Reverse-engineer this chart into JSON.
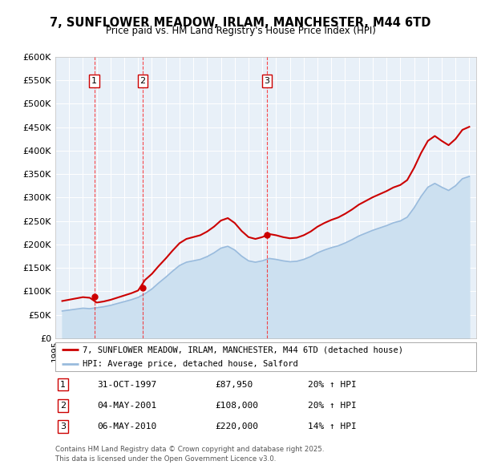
{
  "title": "7, SUNFLOWER MEADOW, IRLAM, MANCHESTER, M44 6TD",
  "subtitle": "Price paid vs. HM Land Registry's House Price Index (HPI)",
  "legend_line1": "7, SUNFLOWER MEADOW, IRLAM, MANCHESTER, M44 6TD (detached house)",
  "legend_line2": "HPI: Average price, detached house, Salford",
  "transactions": [
    {
      "num": 1,
      "date": "31-OCT-1997",
      "price": 87950,
      "hpi_pct": "20% ↑ HPI",
      "year": 1997.83
    },
    {
      "num": 2,
      "date": "04-MAY-2001",
      "price": 108000,
      "hpi_pct": "20% ↑ HPI",
      "year": 2001.34
    },
    {
      "num": 3,
      "date": "06-MAY-2010",
      "price": 220000,
      "hpi_pct": "14% ↑ HPI",
      "year": 2010.34
    }
  ],
  "footer_line1": "Contains HM Land Registry data © Crown copyright and database right 2025.",
  "footer_line2": "This data is licensed under the Open Government Licence v3.0.",
  "price_line_color": "#cc0000",
  "hpi_line_color": "#99bbdd",
  "hpi_fill_color": "#cce0f0",
  "background_color": "#e8f0f8",
  "ylim": [
    0,
    600000
  ],
  "yticks": [
    0,
    50000,
    100000,
    150000,
    200000,
    250000,
    300000,
    350000,
    400000,
    450000,
    500000,
    550000,
    600000
  ],
  "years_hpi": [
    1995.5,
    1996.0,
    1996.5,
    1997.0,
    1997.5,
    1998.0,
    1998.5,
    1999.0,
    1999.5,
    2000.0,
    2000.5,
    2001.0,
    2001.5,
    2002.0,
    2002.5,
    2003.0,
    2003.5,
    2004.0,
    2004.5,
    2005.0,
    2005.5,
    2006.0,
    2006.5,
    2007.0,
    2007.5,
    2008.0,
    2008.5,
    2009.0,
    2009.5,
    2010.0,
    2010.5,
    2011.0,
    2011.5,
    2012.0,
    2012.5,
    2013.0,
    2013.5,
    2014.0,
    2014.5,
    2015.0,
    2015.5,
    2016.0,
    2016.5,
    2017.0,
    2017.5,
    2018.0,
    2018.5,
    2019.0,
    2019.5,
    2020.0,
    2020.5,
    2021.0,
    2021.5,
    2022.0,
    2022.5,
    2023.0,
    2023.5,
    2024.0,
    2024.5,
    2025.0
  ],
  "hpi_values": [
    58000,
    60000,
    62000,
    64000,
    63000,
    65000,
    67000,
    70000,
    74000,
    78000,
    82000,
    87000,
    95000,
    105000,
    118000,
    130000,
    143000,
    155000,
    162000,
    165000,
    168000,
    174000,
    182000,
    192000,
    196000,
    188000,
    175000,
    165000,
    162000,
    165000,
    170000,
    168000,
    165000,
    163000,
    164000,
    168000,
    174000,
    182000,
    188000,
    193000,
    197000,
    203000,
    210000,
    218000,
    224000,
    230000,
    235000,
    240000,
    246000,
    250000,
    258000,
    278000,
    302000,
    322000,
    330000,
    322000,
    315000,
    325000,
    340000,
    345000
  ]
}
